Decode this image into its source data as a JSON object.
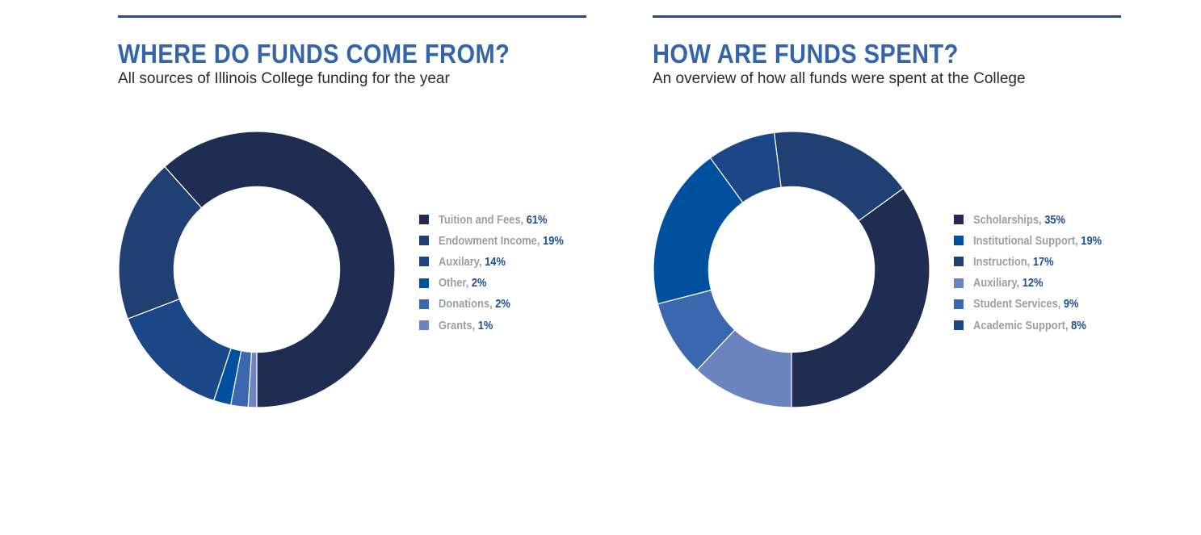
{
  "chart_data": [
    {
      "type": "pie",
      "title": "WHERE DO FUNDS COME FROM?",
      "subtitle": "All sources of Illinois College funding for the year",
      "hole": 0.6,
      "start_angle": 180,
      "legend_position": "right",
      "segment_order": [
        5,
        4,
        3,
        2,
        1,
        0
      ],
      "slices": [
        {
          "label": "Tuition and Fees",
          "value": 61,
          "pct_text": "61%",
          "color": "#1e2d51"
        },
        {
          "label": "Endowment Income",
          "value": 19,
          "pct_text": "19%",
          "color": "#203f72"
        },
        {
          "label": "Auxilary",
          "value": 14,
          "pct_text": "14%",
          "color": "#1b4788"
        },
        {
          "label": "Other",
          "value": 2,
          "pct_text": "2%",
          "color": "#0050a0"
        },
        {
          "label": "Donations",
          "value": 2,
          "pct_text": "2%",
          "color": "#3a67ad"
        },
        {
          "label": "Grants",
          "value": 1,
          "pct_text": "1%",
          "color": "#6b84c0"
        }
      ]
    },
    {
      "type": "pie",
      "title": "HOW ARE FUNDS SPENT?",
      "subtitle": "An overview of how all funds were spent at the College",
      "hole": 0.6,
      "start_angle": 180,
      "legend_position": "right",
      "segment_order": [
        3,
        4,
        1,
        5,
        2,
        0
      ],
      "slices": [
        {
          "label": "Scholarships",
          "value": 35,
          "pct_text": "35%",
          "color": "#1e2d51"
        },
        {
          "label": "Institutional Support",
          "value": 19,
          "pct_text": "19%",
          "color": "#0050a0"
        },
        {
          "label": "Instruction",
          "value": 17,
          "pct_text": "17%",
          "color": "#203f72"
        },
        {
          "label": "Auxiliary",
          "value": 12,
          "pct_text": "12%",
          "color": "#6b84c0"
        },
        {
          "label": "Student Services",
          "value": 9,
          "pct_text": "9%",
          "color": "#3a67ad"
        },
        {
          "label": "Academic Support",
          "value": 8,
          "pct_text": "8%",
          "color": "#1b4788"
        }
      ]
    }
  ]
}
